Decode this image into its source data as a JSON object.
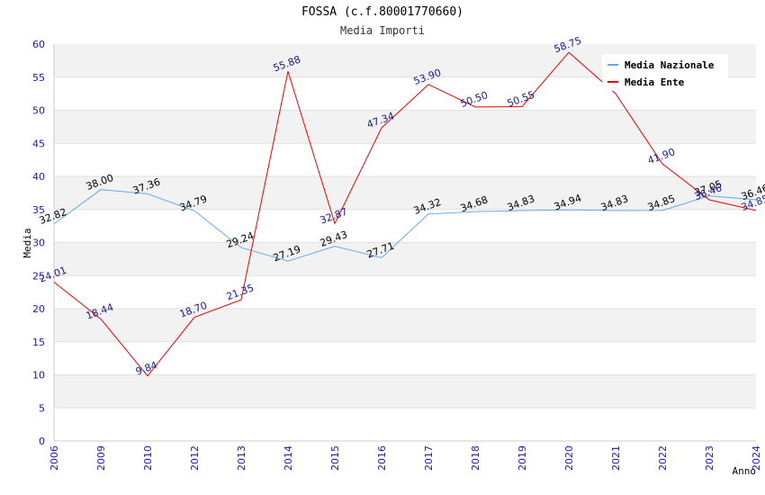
{
  "chart_data": {
    "type": "line",
    "title": "FOSSA (c.f.80001770660)",
    "subtitle": "Media Importi",
    "xlabel": "Anno",
    "ylabel": "Media",
    "ylim": [
      0,
      60
    ],
    "yticks": [
      "0",
      "5",
      "10",
      "15",
      "20",
      "25",
      "30",
      "35",
      "40",
      "45",
      "50",
      "55",
      "60"
    ],
    "grid": "horizontal bands",
    "legend_position": "top-right",
    "categories": [
      "2006",
      "2009",
      "2010",
      "2012",
      "2013",
      "2014",
      "2015",
      "2016",
      "2017",
      "2018",
      "2019",
      "2020",
      "2021",
      "2022",
      "2023",
      "2024"
    ],
    "series": [
      {
        "name": "Media Nazionale",
        "color": "#66aaee",
        "label_color": "#000000",
        "values": [
          32.82,
          38.0,
          37.36,
          34.79,
          29.24,
          27.19,
          29.43,
          27.71,
          34.32,
          34.68,
          34.83,
          34.94,
          34.83,
          34.85,
          37.05,
          36.46
        ],
        "labels": [
          "32.82",
          "38.00",
          "37.36",
          "34.79",
          "29.24",
          "27.19",
          "29.43",
          "27.71",
          "34.32",
          "34.68",
          "34.83",
          "34.94",
          "34.83",
          "34.85",
          "37.05",
          "36.46"
        ]
      },
      {
        "name": "Media Ente",
        "color": "#ee0000",
        "label_color": "#1a1a8c",
        "values": [
          24.01,
          18.44,
          9.84,
          18.7,
          21.35,
          55.88,
          32.87,
          47.34,
          53.9,
          50.5,
          50.55,
          58.75,
          null,
          41.9,
          36.46,
          34.85
        ],
        "line_values": [
          24.01,
          18.44,
          9.84,
          18.7,
          21.35,
          55.88,
          32.87,
          47.34,
          53.9,
          50.5,
          50.55,
          58.75,
          52.5,
          41.9,
          36.46,
          34.85
        ],
        "labels": [
          "24.01",
          "18.44",
          "9.84",
          "18.70",
          "21.35",
          "55.88",
          "32.87",
          "47.34",
          "53.90",
          "50.50",
          "50.55",
          "58.75",
          "",
          "41.90",
          "36.46",
          "34.85"
        ]
      }
    ]
  }
}
